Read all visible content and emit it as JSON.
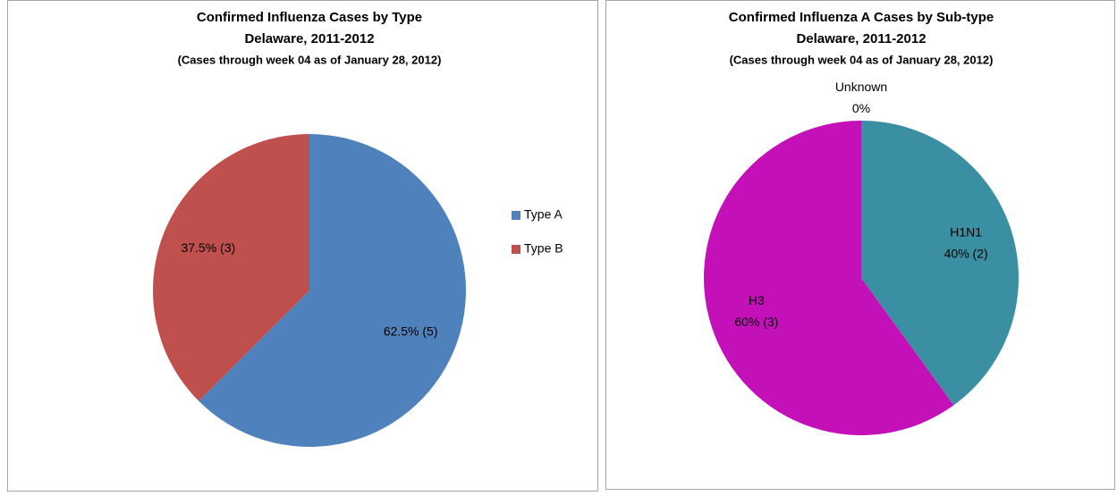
{
  "chart_data": [
    {
      "type": "pie",
      "title": [
        "Confirmed Influenza Cases by Type",
        "Delaware, 2011-2012",
        "(Cases through week 04 as of January 28, 2012)"
      ],
      "categories": [
        "Type A",
        "Type B"
      ],
      "values": [
        62.5,
        37.5
      ],
      "value_labels": [
        "62.5% (5)",
        "37.5% (3)"
      ],
      "colors": [
        "#4f81bd",
        "#c0504d"
      ],
      "legend": "right",
      "category_labels_on_slices": false
    },
    {
      "type": "pie",
      "title": [
        "Confirmed Influenza  A Cases by Sub-type",
        "Delaware, 2011-2012",
        "(Cases through week 04 as of January 28, 2012)"
      ],
      "categories": [
        "H1N1",
        "H3",
        "Unknown"
      ],
      "values": [
        40,
        60,
        0
      ],
      "value_labels": [
        "40% (2)",
        "60% (3)",
        "0%"
      ],
      "colors": [
        "#3a8fa3",
        "#c410b8",
        "#8064a2"
      ],
      "legend": "none",
      "category_labels_on_slices": true
    }
  ]
}
